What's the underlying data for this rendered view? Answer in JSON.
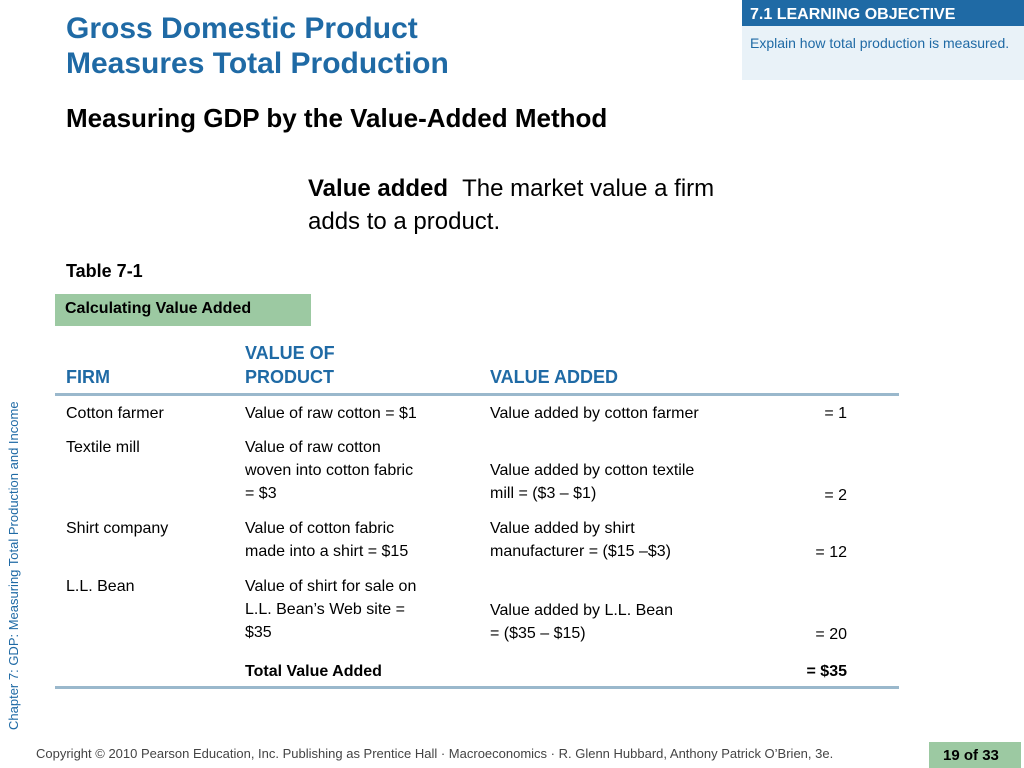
{
  "slide": {
    "title_line1": "Gross Domestic Product",
    "title_line2": "Measures Total Production",
    "learning_objective": {
      "header": "7.1 LEARNING OBJECTIVE",
      "text": "Explain how total production is measured."
    },
    "subtitle": "Measuring GDP by the Value-Added Method",
    "definition": {
      "term": "Value added",
      "text": "The market value a firm adds to a product."
    },
    "table_label": "Table 7-1",
    "table_caption": "Calculating Value Added",
    "side_label": "Chapter 7:  GDP: Measuring Total Production and Income",
    "copyright": "Copyright © 2010 Pearson Education, Inc. Publishing as Prentice Hall · Macroeconomics · R. Glenn Hubbard, Anthony Patrick O’Brien, 3e.",
    "page": {
      "current": "19",
      "of": "of",
      "total": "33"
    }
  },
  "table": {
    "headers": {
      "firm": "FIRM",
      "value_of_product": "VALUE OF\nPRODUCT",
      "value_added": "VALUE ADDED"
    },
    "rows": [
      {
        "firm": "Cotton farmer",
        "value": "Value of raw cotton = $1",
        "added": "Value added by cotton farmer",
        "amount": "= 1"
      },
      {
        "firm": "Textile mill",
        "value": "Value of raw cotton\nwoven into cotton fabric\n= $3",
        "added": "Value added by cotton textile\nmill = ($3 – $1)",
        "amount": "= 2"
      },
      {
        "firm": "Shirt company",
        "value": "Value of cotton fabric\nmade into a shirt = $15",
        "added": "Value added by shirt\nmanufacturer = ($15 –$3)",
        "amount": "= 12"
      },
      {
        "firm": "L.L. Bean",
        "value": "Value of shirt for sale on\nL.L. Bean’s Web site =\n$35",
        "added": "Value added by L.L. Bean\n= ($35 – $15)",
        "amount": "= 20"
      }
    ],
    "total": {
      "label": "Total Value Added",
      "amount": "= $35"
    }
  }
}
